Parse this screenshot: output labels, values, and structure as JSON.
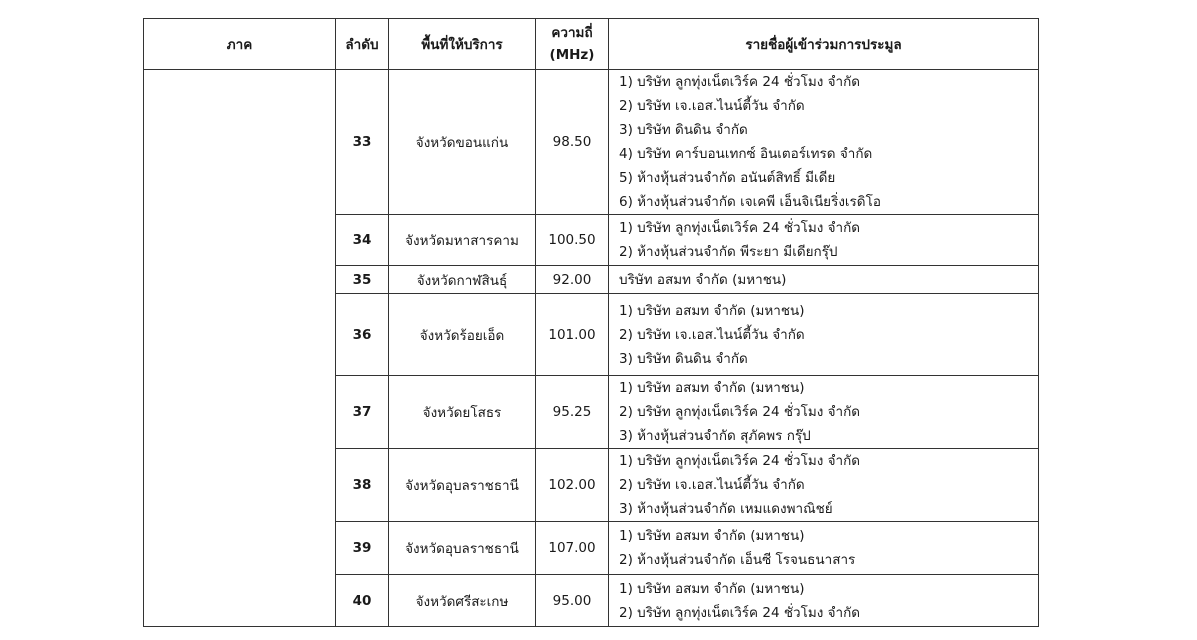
{
  "headers": {
    "region": "ภาค",
    "order": "ลำดับ",
    "area": "พื้นที่ให้บริการ",
    "frequency": "ความถี่",
    "frequency_unit": "(MHz)",
    "participants": "รายชื่อผู้เข้าร่วมการประมูล"
  },
  "region": "",
  "rows": [
    {
      "order": "33",
      "area": "จังหวัดขอนแก่น",
      "frequency": "98.50",
      "participants": [
        "1) บริษัท ลูกทุ่งเน็ตเวิร์ค 24 ชั่วโมง จำกัด",
        "2) บริษัท เจ.เอส.ไนน์ตี้วัน จำกัด",
        "3) บริษัท ดินดิน จำกัด",
        "4) บริษัท คาร์บอนเทกซ์ อินเตอร์เทรด จำกัด",
        "5) ห้างหุ้นส่วนจำกัด อนันต์สิทธิ์ มีเดีย",
        "6) ห้างหุ้นส่วนจำกัด เจเคพี เอ็นจิเนียริ่งเรดิโอ"
      ]
    },
    {
      "order": "34",
      "area": "จังหวัดมหาสารคาม",
      "frequency": "100.50",
      "participants": [
        "1) บริษัท ลูกทุ่งเน็ตเวิร์ค 24 ชั่วโมง จำกัด",
        "2) ห้างหุ้นส่วนจำกัด พีระยา มีเดียกรุ๊ป"
      ]
    },
    {
      "order": "35",
      "area": "จังหวัดกาฬสินธุ์",
      "frequency": "92.00",
      "participants": [
        "บริษัท อสมท จำกัด (มหาชน)"
      ]
    },
    {
      "order": "36",
      "area": "จังหวัดร้อยเอ็ด",
      "frequency": "101.00",
      "participants": [
        "1) บริษัท อสมท จำกัด (มหาชน)",
        "2) บริษัท เจ.เอส.ไนน์ตี้วัน จำกัด",
        "3) บริษัท ดินดิน จำกัด"
      ]
    },
    {
      "order": "37",
      "area": "จังหวัดยโสธร",
      "frequency": "95.25",
      "participants": [
        "1) บริษัท อสมท จำกัด (มหาชน)",
        "2) บริษัท ลูกทุ่งเน็ตเวิร์ค 24 ชั่วโมง จำกัด",
        "3) ห้างหุ้นส่วนจำกัด สุภัคพร กรุ๊ป"
      ]
    },
    {
      "order": "38",
      "area": "จังหวัดอุบลราชธานี",
      "frequency": "102.00",
      "participants": [
        "1) บริษัท ลูกทุ่งเน็ตเวิร์ค 24 ชั่วโมง จำกัด",
        "2) บริษัท เจ.เอส.ไนน์ตี้วัน จำกัด",
        "3) ห้างหุ้นส่วนจำกัด เหมแดงพาณิชย์"
      ]
    },
    {
      "order": "39",
      "area": "จังหวัดอุบลราชธานี",
      "frequency": "107.00",
      "participants": [
        "1) บริษัท อสมท จำกัด (มหาชน)",
        "2) ห้างหุ้นส่วนจำกัด เอ็นซี โรจนธนาสาร"
      ]
    },
    {
      "order": "40",
      "area": "จังหวัดศรีสะเกษ",
      "frequency": "95.00",
      "participants": [
        "1) บริษัท อสมท จำกัด (มหาชน)",
        "2) บริษัท ลูกทุ่งเน็ตเวิร์ค 24 ชั่วโมง จำกัด"
      ]
    }
  ]
}
